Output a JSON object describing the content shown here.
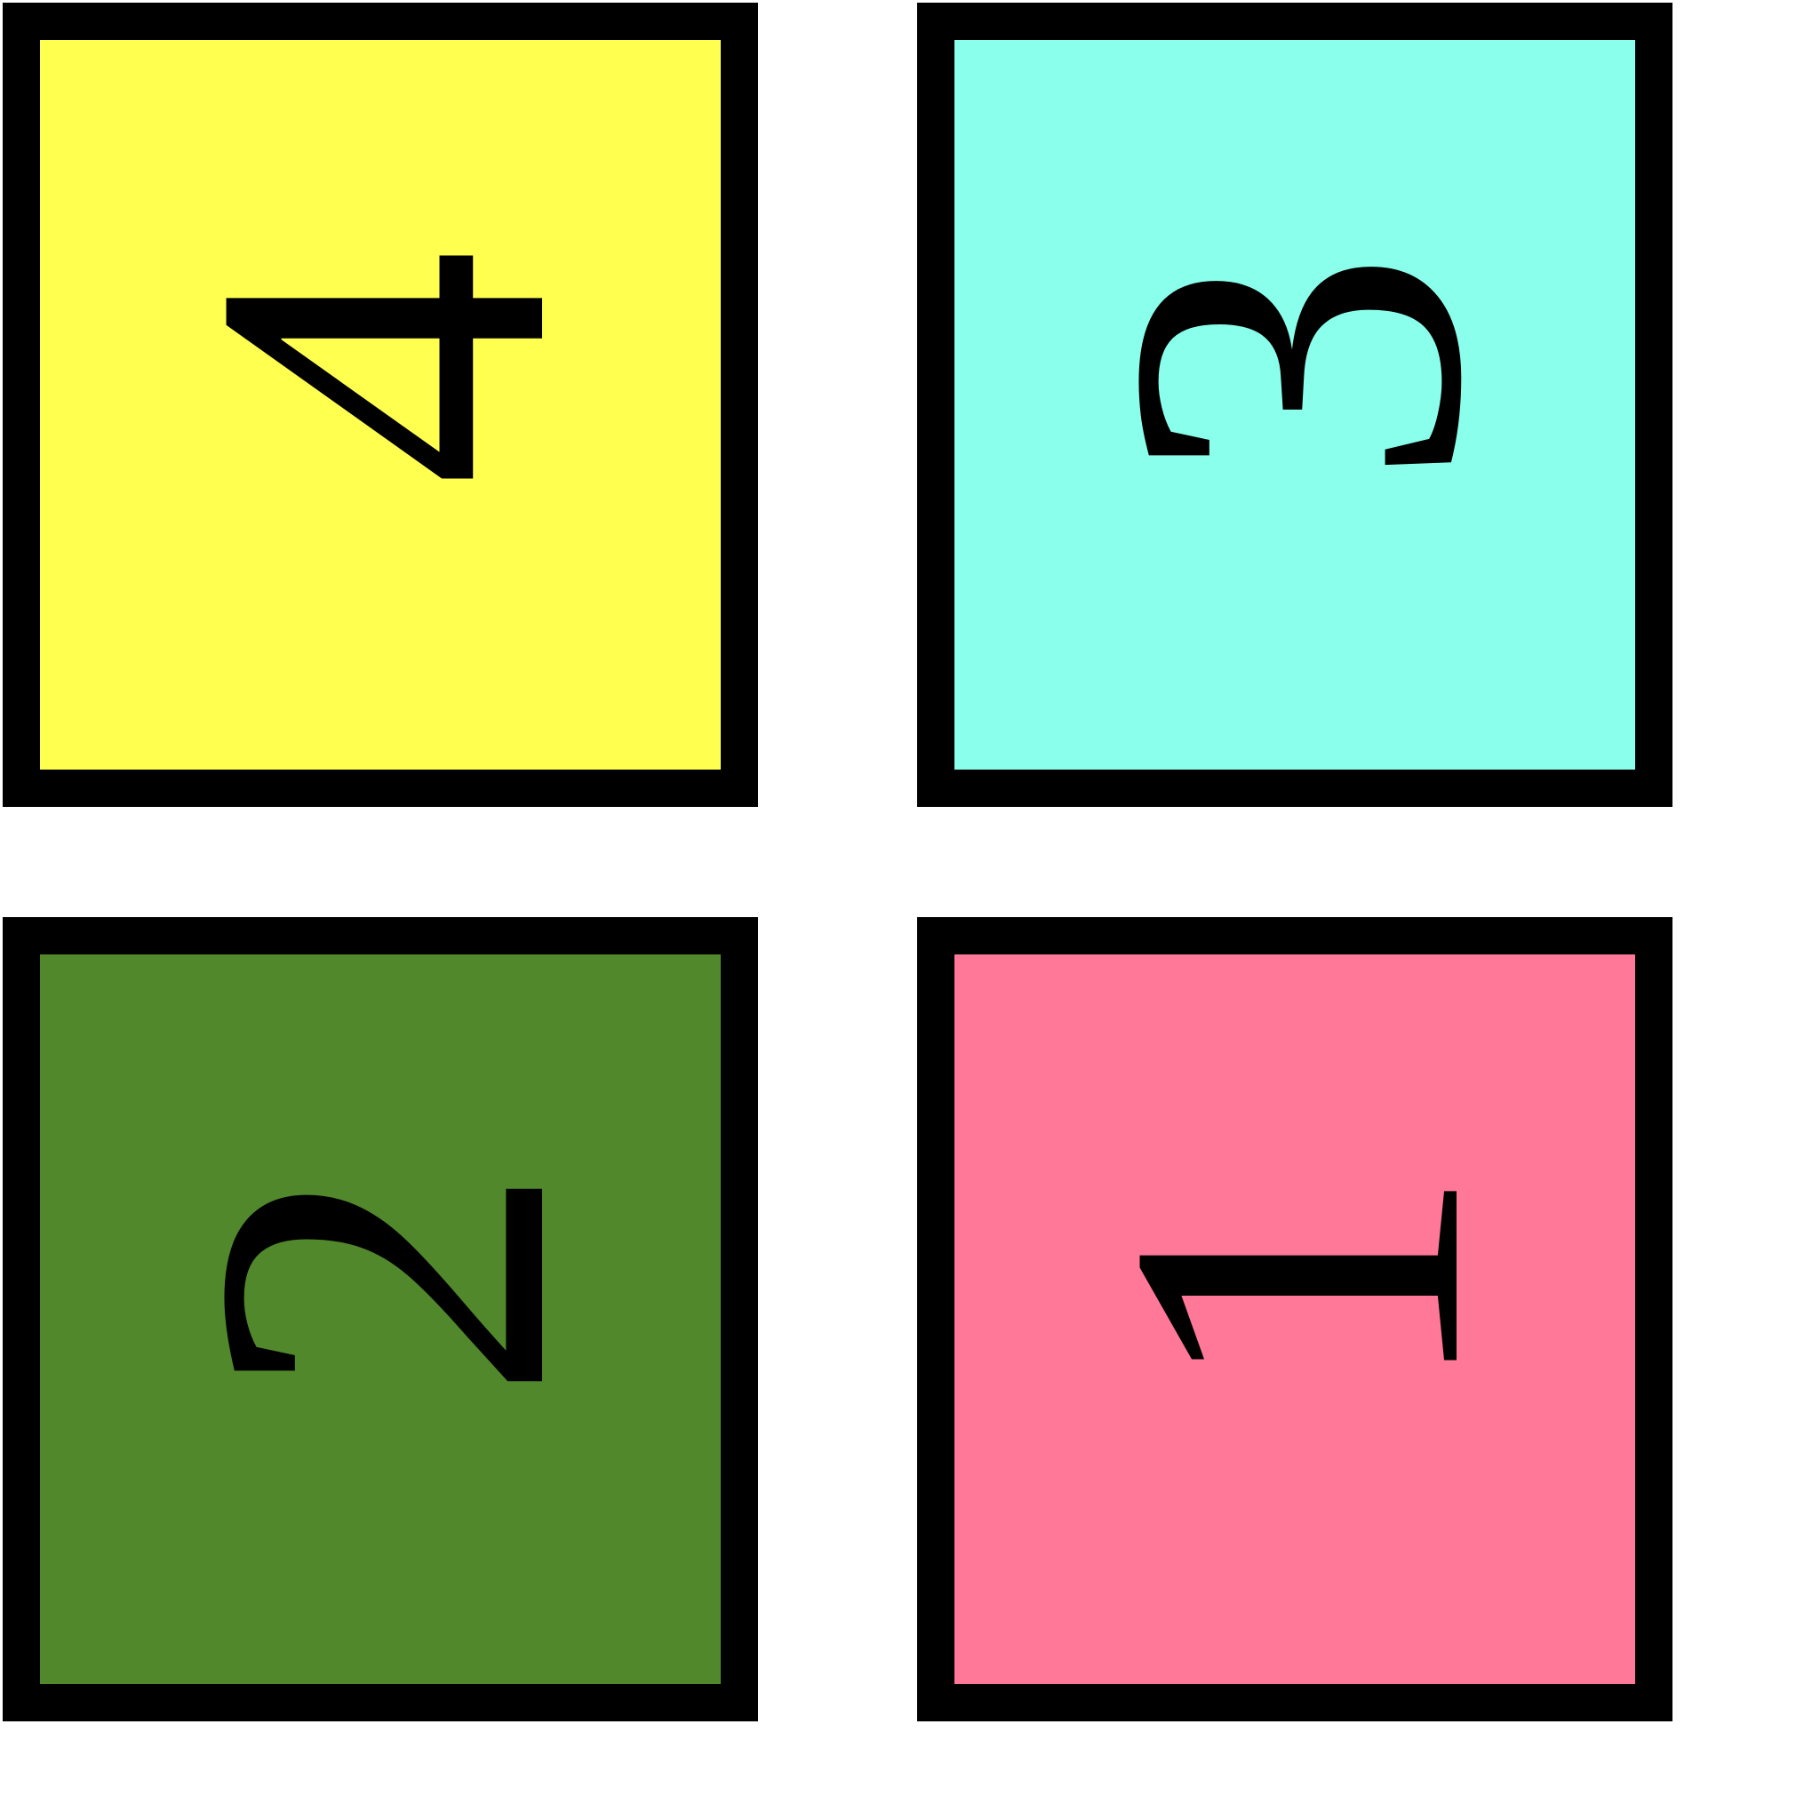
{
  "tiles": [
    {
      "label": "4",
      "color": "#ffff50"
    },
    {
      "label": "3",
      "color": "#8affeb"
    },
    {
      "label": "2",
      "color": "#51882c"
    },
    {
      "label": "1",
      "color": "#ff7898"
    }
  ]
}
